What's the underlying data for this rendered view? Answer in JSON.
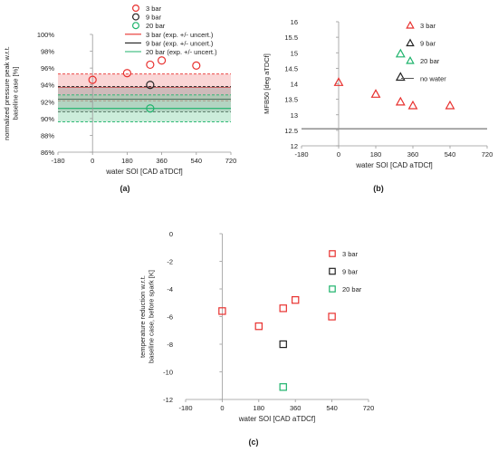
{
  "chart_data": [
    {
      "id": "a",
      "type": "scatter",
      "panel_label": "(a)",
      "title": "",
      "xlabel": "water SOI [CAD aTDCf]",
      "ylabel": [
        "normalized pressure peak w.r.t.",
        "baseline case [%]"
      ],
      "xlim": [
        -180,
        720
      ],
      "ylim": [
        86,
        100
      ],
      "xticks": [
        -180,
        0,
        180,
        360,
        540,
        720
      ],
      "yticks": [
        86,
        88,
        90,
        92,
        94,
        96,
        98,
        100
      ],
      "ytick_format": "percent",
      "marker": "circle",
      "legend_position": "top-right",
      "series": [
        {
          "name": "3 bar",
          "color": "#e8302e",
          "x": [
            0,
            180,
            300,
            360,
            540
          ],
          "y": [
            94.6,
            95.4,
            96.4,
            96.9,
            96.3
          ]
        },
        {
          "name": "9 bar",
          "color": "#222222",
          "x": [
            300
          ],
          "y": [
            94.0
          ]
        },
        {
          "name": "20 bar",
          "color": "#1db36b",
          "x": [
            300
          ],
          "y": [
            91.2
          ]
        }
      ],
      "bands": [
        {
          "name": "3 bar (exp. +/- uncert.)",
          "color": "#e8302e",
          "fill": "#f4a5a5",
          "center": 93.7,
          "low": 92.1,
          "high": 95.3
        },
        {
          "name": "9 bar (exp. +/- uncert.)",
          "color": "#222222",
          "fill": "#9a9a9a",
          "center": 92.3,
          "low": 90.8,
          "high": 93.8
        },
        {
          "name": "20 bar (exp. +/- uncert.)",
          "color": "#1db36b",
          "fill": "#8fd6b0",
          "center": 91.2,
          "low": 89.6,
          "high": 92.8
        }
      ]
    },
    {
      "id": "b",
      "type": "scatter",
      "panel_label": "(b)",
      "title": "",
      "xlabel": "water SOI [CAD aTDCf]",
      "ylabel": [
        "MFB50 [deg aTDCf]"
      ],
      "xlim": [
        -180,
        720
      ],
      "ylim": [
        12,
        16
      ],
      "xticks": [
        -180,
        0,
        180,
        360,
        540,
        720
      ],
      "yticks": [
        12,
        12.5,
        13,
        13.5,
        14,
        14.5,
        15,
        15.5,
        16
      ],
      "ytick_format": "plain",
      "marker": "triangle",
      "legend_position": "top-right",
      "series": [
        {
          "name": "3 bar",
          "color": "#e8302e",
          "x": [
            0,
            180,
            300,
            360,
            540
          ],
          "y": [
            14.05,
            13.67,
            13.42,
            13.3,
            13.3
          ]
        },
        {
          "name": "9 bar",
          "color": "#222222",
          "x": [
            300
          ],
          "y": [
            14.22
          ]
        },
        {
          "name": "20 bar",
          "color": "#1db36b",
          "x": [
            300
          ],
          "y": [
            14.97
          ]
        }
      ],
      "hlines": [
        {
          "name": "no water",
          "color": "#555555",
          "y": 12.55
        }
      ]
    },
    {
      "id": "c",
      "type": "scatter",
      "panel_label": "(c)",
      "title": "",
      "xlabel": "water SOI [CAD aTDCf]",
      "ylabel": [
        "temperature reduction w.r.t.",
        "baseline case, before spark [K]"
      ],
      "xlim": [
        -180,
        720
      ],
      "ylim": [
        -12,
        0
      ],
      "xticks": [
        -180,
        0,
        180,
        360,
        540,
        720
      ],
      "yticks": [
        -12,
        -10,
        -8,
        -6,
        -4,
        -2,
        0
      ],
      "ytick_format": "plain",
      "marker": "square",
      "legend_position": "top-right",
      "series": [
        {
          "name": "3 bar",
          "color": "#e8302e",
          "x": [
            0,
            180,
            300,
            360,
            540
          ],
          "y": [
            -5.6,
            -6.7,
            -5.4,
            -4.8,
            -6.0
          ]
        },
        {
          "name": "9 bar",
          "color": "#222222",
          "x": [
            300
          ],
          "y": [
            -8.0
          ]
        },
        {
          "name": "20 bar",
          "color": "#1db36b",
          "x": [
            300
          ],
          "y": [
            -11.1
          ]
        }
      ]
    }
  ]
}
